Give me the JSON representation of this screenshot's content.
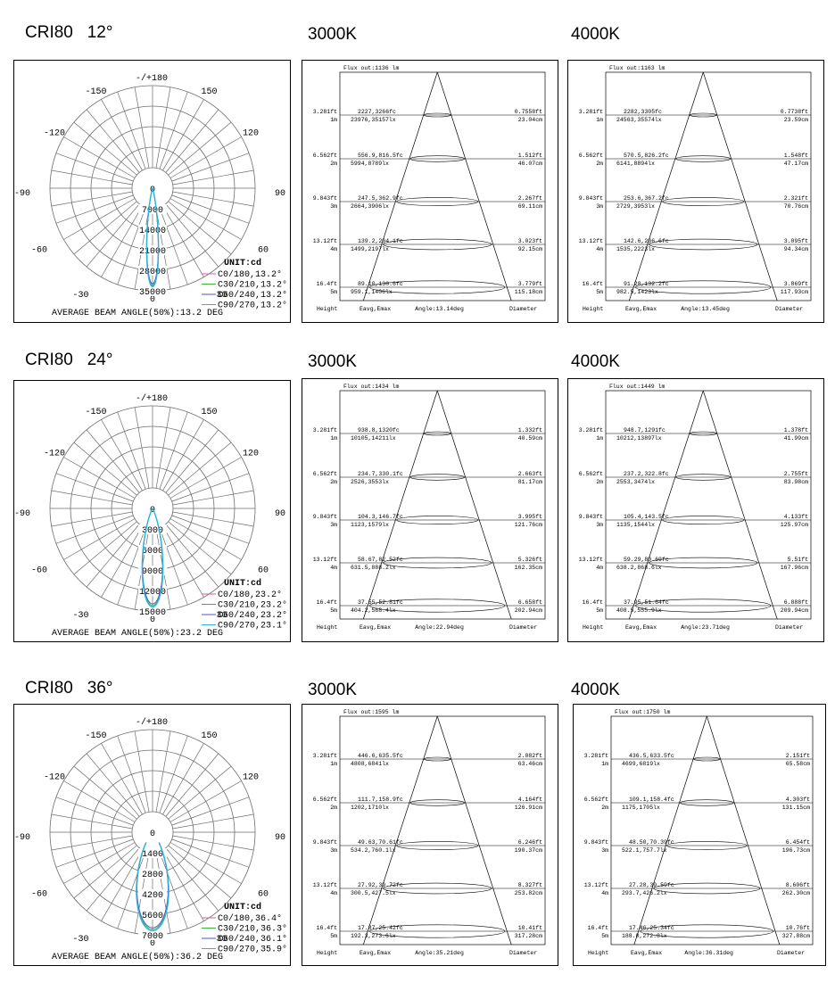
{
  "rows": [
    {
      "label": "CRI80",
      "angle": "12°",
      "polar": {
        "top_label": "-/+180",
        "angle_labels": {
          "a150": "150",
          "a120": "120",
          "a90": "90",
          "a60": "60",
          "a30": "30",
          "am150": "-150",
          "am120": "-120",
          "am90": "-90",
          "am60": "-60",
          "am30": "-30",
          "a0": "0"
        },
        "radial_ticks": [
          "0",
          "7000",
          "14000",
          "21000",
          "28000",
          "35000"
        ],
        "radial_max": 35000,
        "unit": "UNIT:cd",
        "legend": [
          "C0/180,13.2°",
          "C30/210,13.2°",
          "C60/240,13.2°",
          "C90/270,13.2°"
        ],
        "beam_angle_deg": 13.2,
        "avg_beam": "AVERAGE BEAM ANGLE(50%):13.2 DEG"
      },
      "cones": [
        {
          "title": "3000K",
          "flux": "Flux out:1136 lm",
          "rows": [
            {
              "ft": "3.281ft",
              "m": "1m",
              "fc": "2227,3266fc",
              "lx": "23976,35157lx",
              "dft": "0.7558ft",
              "dcm": "23.04cm"
            },
            {
              "ft": "6.562ft",
              "m": "2m",
              "fc": "556.9,816.5fc",
              "lx": "5994,8789lx",
              "dft": "1.512ft",
              "dcm": "46.07cm"
            },
            {
              "ft": "9.843ft",
              "m": "3m",
              "fc": "247.5,362.9fc",
              "lx": "2664,3906lx",
              "dft": "2.267ft",
              "dcm": "69.11cm"
            },
            {
              "ft": "13.12ft",
              "m": "4m",
              "fc": "139.2,204.1fc",
              "lx": "1499,2197lx",
              "dft": "3.023ft",
              "dcm": "92.15cm"
            },
            {
              "ft": "16.4ft",
              "m": "5m",
              "fc": "89.10,130.6fc",
              "lx": "959.1,1406lx",
              "dft": "3.779ft",
              "dcm": "115.18cm"
            }
          ],
          "footer": {
            "height": "Height",
            "eavg": "Eavg,Emax",
            "angle": "Angle:13.14deg",
            "diameter": "Diameter"
          }
        },
        {
          "title": "4000K",
          "flux": "Flux out:1163 lm",
          "rows": [
            {
              "ft": "3.281ft",
              "m": "1m",
              "fc": "2282,3305fc",
              "lx": "24563,35574lx",
              "dft": "0.7738ft",
              "dcm": "23.59cm"
            },
            {
              "ft": "6.562ft",
              "m": "2m",
              "fc": "570.5,826.2fc",
              "lx": "6141,8894lx",
              "dft": "1.548ft",
              "dcm": "47.17cm"
            },
            {
              "ft": "9.843ft",
              "m": "3m",
              "fc": "253.6,367.2fc",
              "lx": "2729,3953lx",
              "dft": "2.321ft",
              "dcm": "70.76cm"
            },
            {
              "ft": "13.12ft",
              "m": "4m",
              "fc": "142.6,206.6fc",
              "lx": "1535,2223lx",
              "dft": "3.095ft",
              "dcm": "94.34cm"
            },
            {
              "ft": "16.4ft",
              "m": "5m",
              "fc": "91.28,132.2fc",
              "lx": "982.5,1423lx",
              "dft": "3.869ft",
              "dcm": "117.93cm"
            }
          ],
          "footer": {
            "height": "Height",
            "eavg": "Eavg,Emax",
            "angle": "Angle:13.45deg",
            "diameter": "Diameter"
          }
        }
      ]
    },
    {
      "label": "CRI80",
      "angle": "24°",
      "polar": {
        "top_label": "-/+180",
        "angle_labels": {
          "a150": "150",
          "a120": "120",
          "a90": "90",
          "a60": "60",
          "a30": "30",
          "am150": "-150",
          "am120": "-120",
          "am90": "-90",
          "am60": "-60",
          "am30": "-30",
          "a0": "0"
        },
        "radial_ticks": [
          "0",
          "3000",
          "6000",
          "9000",
          "12000",
          "15000"
        ],
        "radial_max": 15000,
        "unit": "UNIT:cd",
        "legend": [
          "C0/180,23.2°",
          "C30/210,23.2°",
          "C60/240,23.2°",
          "C90/270,23.1°"
        ],
        "beam_angle_deg": 23.2,
        "avg_beam": "AVERAGE BEAM ANGLE(50%):23.2 DEG"
      },
      "cones": [
        {
          "title": "3000K",
          "flux": "Flux out:1434 lm",
          "rows": [
            {
              "ft": "3.281ft",
              "m": "1m",
              "fc": "938.8,1320fc",
              "lx": "10105,14211lx",
              "dft": "1.332ft",
              "dcm": "40.59cm"
            },
            {
              "ft": "6.562ft",
              "m": "2m",
              "fc": "234.7,330.1fc",
              "lx": "2526,3553lx",
              "dft": "2.663ft",
              "dcm": "81.17cm"
            },
            {
              "ft": "9.843ft",
              "m": "3m",
              "fc": "104.3,146.7fc",
              "lx": "1123,1579lx",
              "dft": "3.995ft",
              "dcm": "121.76cm"
            },
            {
              "ft": "13.12ft",
              "m": "4m",
              "fc": "58.67,82.52fc",
              "lx": "631.5,888.2lx",
              "dft": "5.326ft",
              "dcm": "162.35cm"
            },
            {
              "ft": "16.4ft",
              "m": "5m",
              "fc": "37.55,52.81fc",
              "lx": "404.2,568.4lx",
              "dft": "6.658ft",
              "dcm": "202.94cm"
            }
          ],
          "footer": {
            "height": "Height",
            "eavg": "Eavg,Emax",
            "angle": "Angle:22.94deg",
            "diameter": "Diameter"
          }
        },
        {
          "title": "4000K",
          "flux": "Flux out:1449 lm",
          "rows": [
            {
              "ft": "3.281ft",
              "m": "1m",
              "fc": "948.7,1291fc",
              "lx": "10212,13897lx",
              "dft": "1.378ft",
              "dcm": "41.99cm"
            },
            {
              "ft": "6.562ft",
              "m": "2m",
              "fc": "237.2,322.8fc",
              "lx": "2553,3474lx",
              "dft": "2.755ft",
              "dcm": "83.98cm"
            },
            {
              "ft": "9.843ft",
              "m": "3m",
              "fc": "105.4,143.5fc",
              "lx": "1135,1544lx",
              "dft": "4.133ft",
              "dcm": "125.97cm"
            },
            {
              "ft": "13.12ft",
              "m": "4m",
              "fc": "59.29,80.69fc",
              "lx": "638.2,868.6lx",
              "dft": "5.51ft",
              "dcm": "167.96cm"
            },
            {
              "ft": "16.4ft",
              "m": "5m",
              "fc": "37.95,51.64fc",
              "lx": "408.5,555.9lx",
              "dft": "6.888ft",
              "dcm": "209.94cm"
            }
          ],
          "footer": {
            "height": "Height",
            "eavg": "Eavg,Emax",
            "angle": "Angle:23.71deg",
            "diameter": "Diameter"
          }
        }
      ]
    },
    {
      "label": "CRI80",
      "angle": "36°",
      "polar": {
        "top_label": "-/+180",
        "angle_labels": {
          "a150": "150",
          "a120": "120",
          "a90": "90",
          "a60": "60",
          "a30": "30",
          "am150": "-150",
          "am120": "-120",
          "am90": "-90",
          "am60": "-60",
          "am30": "-30",
          "a0": "0"
        },
        "radial_ticks": [
          "0",
          "1400",
          "2800",
          "4200",
          "5600",
          "7000"
        ],
        "radial_max": 7000,
        "unit": "UNIT:cd",
        "legend": [
          "C0/180,36.4°",
          "C30/210,36.3°",
          "C60/240,36.1°",
          "C90/270,35.9°"
        ],
        "beam_angle_deg": 36.2,
        "avg_beam": "AVERAGE BEAM ANGLE(50%):36.2 DEG"
      },
      "cones": [
        {
          "title": "3000K",
          "flux": "Flux out:1595 lm",
          "rows": [
            {
              "ft": "3.281ft",
              "m": "1m",
              "fc": "446.6,635.5fc",
              "lx": "4808,6841lx",
              "dft": "2.082ft",
              "dcm": "63.46cm"
            },
            {
              "ft": "6.562ft",
              "m": "2m",
              "fc": "111.7,158.9fc",
              "lx": "1202,1710lx",
              "dft": "4.164ft",
              "dcm": "126.91cm"
            },
            {
              "ft": "9.843ft",
              "m": "3m",
              "fc": "49.63,70.61fc",
              "lx": "534.2,760.1lx",
              "dft": "6.246ft",
              "dcm": "190.37cm"
            },
            {
              "ft": "13.12ft",
              "m": "4m",
              "fc": "27.92,39.72fc",
              "lx": "300.5,427.5lx",
              "dft": "8.327ft",
              "dcm": "253.82cm"
            },
            {
              "ft": "16.4ft",
              "m": "5m",
              "fc": "17.87,25.42fc",
              "lx": "192.3,273.6lx",
              "dft": "10.41ft",
              "dcm": "317.28cm"
            }
          ],
          "footer": {
            "height": "Height",
            "eavg": "Eavg,Emax",
            "angle": "Angle:35.21deg",
            "diameter": "Diameter"
          }
        },
        {
          "title": "4000K",
          "flux": "Flux out:1750 lm",
          "rows": [
            {
              "ft": "3.281ft",
              "m": "1m",
              "fc": "436.5,633.5fc",
              "lx": "4699,6819lx",
              "dft": "2.151ft",
              "dcm": "65.58cm"
            },
            {
              "ft": "6.562ft",
              "m": "2m",
              "fc": "109.1,158.4fc",
              "lx": "1175,1705lx",
              "dft": "4.303ft",
              "dcm": "131.15cm"
            },
            {
              "ft": "9.843ft",
              "m": "3m",
              "fc": "48.50,70.39fc",
              "lx": "522.1,757.7lx",
              "dft": "6.454ft",
              "dcm": "196.73cm"
            },
            {
              "ft": "13.12ft",
              "m": "4m",
              "fc": "27.28,39.59fc",
              "lx": "293.7,426.2lx",
              "dft": "8.606ft",
              "dcm": "262.30cm"
            },
            {
              "ft": "16.4ft",
              "m": "5m",
              "fc": "17.46,25.34fc",
              "lx": "188.0,272.8lx",
              "dft": "10.76ft",
              "dcm": "327.88cm"
            }
          ],
          "footer": {
            "height": "Height",
            "eavg": "Eavg,Emax",
            "angle": "Angle:36.31deg",
            "diameter": "Diameter"
          }
        }
      ]
    }
  ],
  "legend_colors": [
    "#c86496",
    "#3cb43c",
    "#5050c8",
    "#28b4dc"
  ],
  "curve_color": "#28b4dc",
  "grid_color": "#6e6e6e"
}
